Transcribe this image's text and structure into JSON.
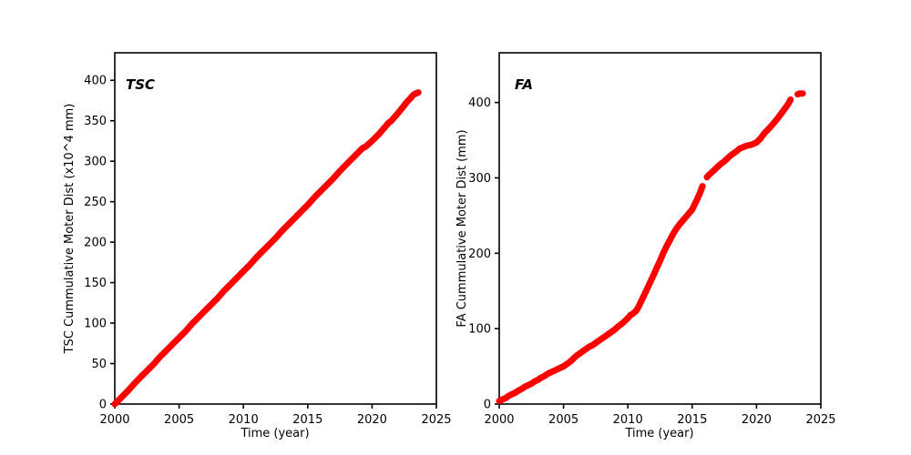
{
  "figure": {
    "background": "#ffffff"
  },
  "chart_data": [
    {
      "id": "tsc",
      "type": "scatter",
      "inner_label": "TSC",
      "xlabel": "Time (year)",
      "ylabel": "TSC Cummulative Moter Dist (x10^4 mm)",
      "marker_color": "#ff0000",
      "marker_style": "thick-dot-line",
      "grid": false,
      "xlim": [
        2000,
        2025
      ],
      "ylim": [
        0,
        434
      ],
      "xticks": [
        2000,
        2005,
        2010,
        2015,
        2020,
        2025
      ],
      "yticks": [
        0,
        50,
        100,
        150,
        200,
        250,
        300,
        350,
        400
      ],
      "segments": [
        [
          [
            2000,
            0
          ],
          [
            2000.5,
            8
          ],
          [
            2001,
            16
          ],
          [
            2001.5,
            25
          ],
          [
            2002,
            33
          ],
          [
            2002.5,
            41
          ],
          [
            2003,
            49
          ],
          [
            2003.5,
            58
          ],
          [
            2004,
            66
          ],
          [
            2004.5,
            74
          ],
          [
            2005,
            82
          ],
          [
            2005.5,
            90
          ],
          [
            2006,
            99
          ],
          [
            2006.5,
            107
          ],
          [
            2007,
            115
          ],
          [
            2007.5,
            123
          ],
          [
            2008,
            131
          ],
          [
            2008.5,
            140
          ],
          [
            2009,
            148
          ],
          [
            2009.5,
            156
          ],
          [
            2010,
            164
          ],
          [
            2010.5,
            172
          ],
          [
            2011,
            181
          ],
          [
            2011.5,
            189
          ],
          [
            2012,
            197
          ],
          [
            2012.5,
            205
          ],
          [
            2013,
            214
          ],
          [
            2013.5,
            222
          ],
          [
            2014,
            230
          ],
          [
            2014.5,
            238
          ],
          [
            2015,
            246
          ],
          [
            2015.5,
            255
          ],
          [
            2016,
            263
          ],
          [
            2016.5,
            271
          ],
          [
            2017,
            279
          ],
          [
            2017.5,
            288
          ],
          [
            2018,
            296
          ],
          [
            2018.5,
            304
          ],
          [
            2019,
            312
          ],
          [
            2019.25,
            316
          ],
          [
            2019.5,
            318
          ],
          [
            2020,
            325
          ],
          [
            2020.5,
            333
          ],
          [
            2021,
            342
          ],
          [
            2021.25,
            347
          ],
          [
            2021.5,
            350
          ],
          [
            2022,
            359
          ],
          [
            2022.25,
            364
          ],
          [
            2022.5,
            369
          ],
          [
            2022.75,
            374
          ],
          [
            2023,
            378
          ],
          [
            2023.15,
            381
          ],
          [
            2023.3,
            383
          ],
          [
            2023.45,
            384
          ],
          [
            2023.6,
            385
          ]
        ]
      ]
    },
    {
      "id": "fa",
      "type": "scatter",
      "inner_label": "FA",
      "xlabel": "Time (year)",
      "ylabel": "FA Cummulative Moter Dist (mm)",
      "marker_color": "#ff0000",
      "marker_style": "thick-dot-line",
      "grid": false,
      "xlim": [
        2000,
        2025
      ],
      "ylim": [
        0,
        466
      ],
      "xticks": [
        2000,
        2005,
        2010,
        2015,
        2020,
        2025
      ],
      "yticks": [
        0,
        100,
        200,
        300,
        400
      ],
      "segments": [
        [
          [
            2000,
            4
          ],
          [
            2000.25,
            6
          ],
          [
            2000.5,
            8
          ],
          [
            2000.75,
            11
          ],
          [
            2001,
            13
          ],
          [
            2001.25,
            15
          ],
          [
            2001.5,
            18
          ],
          [
            2001.75,
            20
          ],
          [
            2002,
            23
          ],
          [
            2002.25,
            25
          ],
          [
            2002.5,
            27
          ],
          [
            2002.75,
            30
          ],
          [
            2003,
            32
          ],
          [
            2003.25,
            35
          ],
          [
            2003.5,
            37
          ],
          [
            2003.75,
            40
          ],
          [
            2004,
            42
          ],
          [
            2004.25,
            44
          ],
          [
            2004.5,
            46
          ],
          [
            2004.75,
            48
          ],
          [
            2005,
            50
          ],
          [
            2005.25,
            53
          ],
          [
            2005.5,
            56
          ],
          [
            2005.75,
            60
          ],
          [
            2006,
            64
          ],
          [
            2006.25,
            67
          ],
          [
            2006.5,
            70
          ],
          [
            2006.75,
            73
          ],
          [
            2007,
            76
          ],
          [
            2007.25,
            78
          ],
          [
            2007.5,
            81
          ],
          [
            2007.75,
            84
          ],
          [
            2008,
            87
          ],
          [
            2008.25,
            90
          ],
          [
            2008.5,
            93
          ],
          [
            2008.75,
            96
          ],
          [
            2009,
            99
          ],
          [
            2009.25,
            103
          ],
          [
            2009.5,
            106
          ],
          [
            2009.75,
            110
          ],
          [
            2010,
            114
          ],
          [
            2010.2,
            118
          ],
          [
            2010.4,
            120
          ],
          [
            2010.6,
            123
          ],
          [
            2010.8,
            128
          ],
          [
            2011,
            135
          ],
          [
            2011.25,
            144
          ],
          [
            2011.5,
            153
          ],
          [
            2011.75,
            162
          ],
          [
            2012,
            171
          ],
          [
            2012.25,
            181
          ],
          [
            2012.5,
            190
          ],
          [
            2012.75,
            200
          ],
          [
            2013,
            209
          ],
          [
            2013.25,
            217
          ],
          [
            2013.5,
            225
          ],
          [
            2013.75,
            232
          ],
          [
            2014,
            238
          ],
          [
            2014.25,
            243
          ],
          [
            2014.5,
            248
          ],
          [
            2014.75,
            253
          ],
          [
            2015,
            258
          ],
          [
            2015.2,
            265
          ],
          [
            2015.4,
            272
          ],
          [
            2015.6,
            280
          ],
          [
            2015.8,
            289
          ]
        ],
        [
          [
            2016.15,
            301
          ],
          [
            2016.3,
            304
          ],
          [
            2016.5,
            307
          ],
          [
            2016.75,
            311
          ],
          [
            2017,
            315
          ],
          [
            2017.25,
            319
          ],
          [
            2017.5,
            322
          ],
          [
            2017.75,
            326
          ],
          [
            2018,
            330
          ],
          [
            2018.25,
            333
          ],
          [
            2018.5,
            336
          ],
          [
            2018.7,
            339
          ],
          [
            2019,
            341
          ],
          [
            2019.3,
            343
          ],
          [
            2019.6,
            344
          ],
          [
            2020,
            347
          ],
          [
            2020.3,
            352
          ],
          [
            2020.6,
            359
          ],
          [
            2021,
            366
          ],
          [
            2021.3,
            372
          ],
          [
            2021.6,
            378
          ],
          [
            2022,
            387
          ],
          [
            2022.3,
            394
          ],
          [
            2022.5,
            399
          ],
          [
            2022.65,
            404
          ]
        ],
        [
          [
            2023.2,
            411
          ],
          [
            2023.35,
            412
          ],
          [
            2023.5,
            412
          ],
          [
            2023.6,
            412
          ]
        ]
      ]
    }
  ]
}
